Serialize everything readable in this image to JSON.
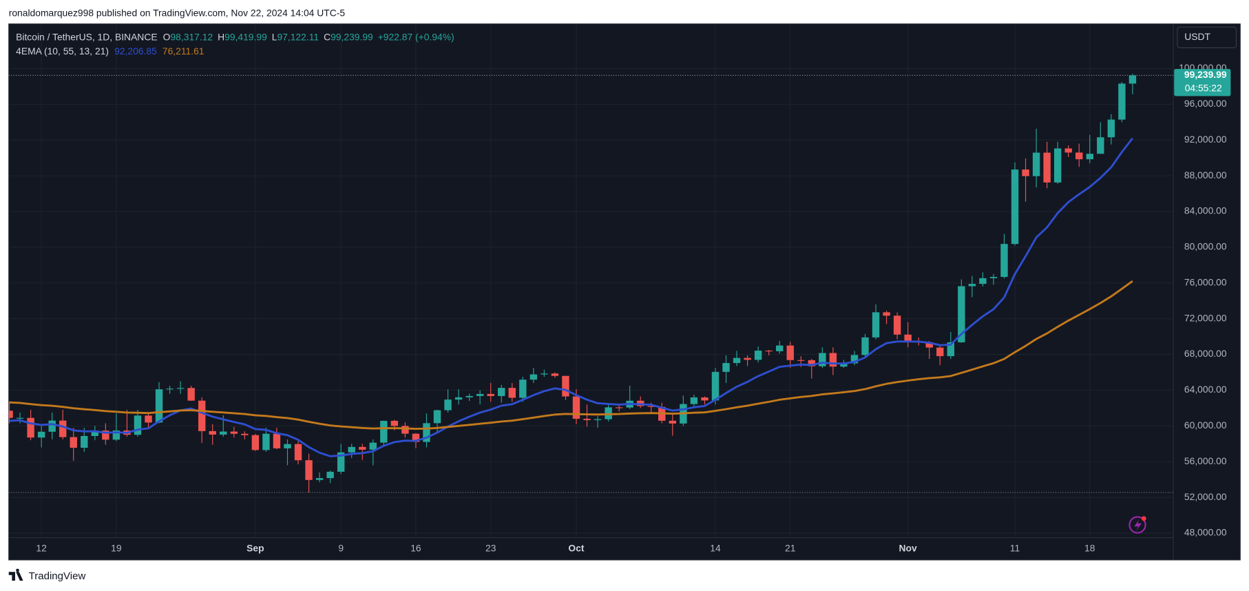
{
  "header": {
    "text": "ronaldomarquez998 published on TradingView.com, Nov 22, 2024 14:04 UTC-5"
  },
  "footer": {
    "brand": "TradingView"
  },
  "chart_data": {
    "type": "candlestick",
    "legend": {
      "symbol": "Bitcoin / TetherUS, 1D, BINANCE",
      "open_key": "O",
      "high_key": "H",
      "low_key": "L",
      "close_key": "C",
      "ohlc_labels": [
        "98,317.12",
        "99,419.99",
        "97,122.11",
        "99,239.99"
      ],
      "change": "+922.87 (+0.94%)",
      "indicator": "4EMA (10, 55, 13, 21)"
    },
    "currency": "USDT",
    "countdown": "04:55:22",
    "categories": [
      null,
      null,
      null,
      "12",
      null,
      null,
      null,
      null,
      null,
      null,
      "19",
      null,
      null,
      null,
      null,
      null,
      null,
      null,
      null,
      null,
      null,
      null,
      null,
      "Sep",
      null,
      null,
      null,
      null,
      null,
      null,
      null,
      "9",
      null,
      null,
      null,
      null,
      null,
      null,
      "16",
      null,
      null,
      null,
      null,
      null,
      null,
      "23",
      null,
      null,
      null,
      null,
      null,
      null,
      null,
      "Oct",
      null,
      null,
      null,
      null,
      null,
      null,
      null,
      null,
      null,
      null,
      null,
      null,
      "14",
      null,
      null,
      null,
      null,
      null,
      null,
      "21",
      null,
      null,
      null,
      null,
      null,
      null,
      null,
      null,
      null,
      null,
      "Nov",
      null,
      null,
      null,
      null,
      null,
      null,
      null,
      null,
      null,
      "11",
      null,
      null,
      null,
      null,
      null,
      null,
      "18",
      null,
      null,
      null,
      null
    ],
    "open": [
      61700,
      60900,
      60900,
      58700,
      59350,
      60600,
      58750,
      57560,
      58870,
      59480,
      58460,
      59490,
      59010,
      61160,
      60380,
      64100,
      64180,
      64250,
      62830,
      59420,
      59030,
      59370,
      59120,
      58970,
      57300,
      59130,
      57490,
      57970,
      56160,
      53950,
      54160,
      54870,
      57040,
      57650,
      57340,
      58130,
      60570,
      60000,
      59130,
      58210,
      60310,
      61760,
      62950,
      63200,
      63350,
      63580,
      63340,
      64260,
      63150,
      65180,
      65770,
      65870,
      65600,
      63300,
      60800,
      60650,
      60750,
      62080,
      62060,
      62820,
      62220,
      62130,
      60580,
      60270,
      62450,
      63190,
      62850,
      66050,
      67040,
      67610,
      67400,
      68430,
      68360,
      69000,
      67370,
      67360,
      66680,
      68160,
      66640,
      67010,
      67940,
      69910,
      72720,
      72340,
      70220,
      69480,
      69370,
      68770,
      67810,
      69360,
      75640,
      75900,
      76540,
      76680,
      80370,
      88700,
      87960,
      90590,
      87250,
      91060,
      90600,
      89850,
      90460,
      92310,
      94290,
      98317.12
    ],
    "high": [
      62700,
      61500,
      61800,
      60200,
      61500,
      61800,
      59800,
      59800,
      60000,
      60300,
      61400,
      61800,
      61800,
      61400,
      64900,
      64500,
      65000,
      64500,
      63200,
      60200,
      61200,
      59900,
      59400,
      59100,
      59800,
      59800,
      58500,
      58300,
      56900,
      54800,
      55000,
      58000,
      58000,
      58000,
      58500,
      60600,
      60700,
      60400,
      59200,
      61400,
      61800,
      64100,
      64100,
      63600,
      64000,
      64800,
      64600,
      64800,
      65500,
      66500,
      66300,
      66000,
      65600,
      64100,
      62400,
      61100,
      62500,
      62400,
      64500,
      63300,
      62600,
      62600,
      61300,
      63400,
      63500,
      63300,
      66500,
      67900,
      68400,
      67900,
      68900,
      68500,
      69500,
      69400,
      67800,
      67500,
      68800,
      68800,
      67400,
      68400,
      70300,
      73600,
      72900,
      72700,
      71600,
      69900,
      69500,
      69000,
      70500,
      76400,
      76800,
      77200,
      77000,
      81500,
      89500,
      89950,
      93265,
      91800,
      91800,
      91400,
      91600,
      92600,
      94000,
      94900,
      98500,
      99419.99
    ],
    "low": [
      60300,
      60300,
      58400,
      57600,
      58500,
      58500,
      56100,
      57100,
      58400,
      57900,
      58300,
      58800,
      58800,
      59800,
      60300,
      63600,
      63600,
      62800,
      58100,
      57900,
      58800,
      58700,
      58500,
      57200,
      57100,
      57400,
      55600,
      55700,
      52550,
      53700,
      53600,
      54600,
      56400,
      56200,
      55600,
      57700,
      59500,
      58700,
      57500,
      57600,
      59200,
      61500,
      62400,
      62800,
      62400,
      62700,
      62600,
      62700,
      62700,
      64800,
      65500,
      65400,
      62900,
      60200,
      59900,
      59800,
      60500,
      61600,
      61900,
      62000,
      61400,
      60300,
      58900,
      60000,
      62200,
      62400,
      62400,
      64800,
      66700,
      66700,
      67100,
      67900,
      68100,
      66500,
      66600,
      65300,
      66500,
      65700,
      66500,
      66800,
      67600,
      69700,
      71400,
      69700,
      68800,
      69000,
      67500,
      66800,
      67500,
      69300,
      74400,
      75600,
      75800,
      76500,
      80200,
      85100,
      86700,
      86600,
      87100,
      90100,
      89000,
      89400,
      90800,
      91500,
      94000,
      97122.11
    ],
    "close": [
      60900,
      60900,
      58700,
      59350,
      60600,
      58750,
      57560,
      58870,
      59480,
      58460,
      59490,
      59010,
      61160,
      60380,
      64100,
      64180,
      64250,
      62830,
      59420,
      59030,
      59370,
      59120,
      58970,
      57300,
      59130,
      57490,
      57970,
      56160,
      53950,
      54160,
      54870,
      57040,
      57650,
      57340,
      58130,
      60570,
      60000,
      59130,
      58210,
      60310,
      61760,
      62950,
      63200,
      63350,
      63580,
      63340,
      64260,
      63150,
      65180,
      65770,
      65870,
      65600,
      63300,
      60800,
      60650,
      60750,
      62080,
      62060,
      62820,
      62220,
      62130,
      60580,
      60270,
      62450,
      63190,
      62850,
      66050,
      67040,
      67610,
      67400,
      68430,
      68360,
      69000,
      67370,
      67360,
      66680,
      68160,
      66640,
      67010,
      67940,
      69910,
      72720,
      72340,
      70220,
      69480,
      69370,
      68770,
      67810,
      69360,
      75640,
      75900,
      76540,
      76680,
      80370,
      88700,
      87960,
      90590,
      87250,
      91060,
      90600,
      89850,
      90460,
      92310,
      94290,
      98317.12,
      99239.99
    ],
    "up_color": "#26a69a",
    "down_color": "#ef5350",
    "series": [
      {
        "color": "#2e4fd0",
        "last_label": "92,206.85",
        "values": [
          60573,
          60632,
          60281,
          60112,
          60201,
          59937,
          59505,
          59390,
          59406,
          59234,
          59281,
          59232,
          59583,
          59728,
          60523,
          61188,
          61745,
          61942,
          61483,
          61037,
          60734,
          60440,
          60173,
          59651,
          59556,
          59180,
          58960,
          58451,
          57632,
          57000,
          56612,
          56690,
          56865,
          56951,
          57166,
          57785,
          58188,
          58359,
          58332,
          58692,
          59250,
          59923,
          60519,
          61034,
          61497,
          61832,
          62273,
          62433,
          62933,
          63449,
          63889,
          64200,
          64036,
          63447,
          62938,
          62540,
          62456,
          62384,
          62463,
          62419,
          62366,
          62041,
          61719,
          61852,
          62095,
          62232,
          62927,
          63675,
          64391,
          64939,
          65574,
          66081,
          66612,
          66750,
          66861,
          66828,
          67070,
          66992,
          66995,
          67167,
          67666,
          68586,
          69269,
          69442,
          69449,
          69435,
          69314,
          69041,
          69099,
          70289,
          71309,
          72260,
          73064,
          74393,
          76996,
          78991,
          81100,
          82218,
          83826,
          85058,
          85929,
          86753,
          87764,
          88951,
          90656,
          92206.85
        ]
      },
      {
        "color": "#c47a1c",
        "last_label": "76,211.61",
        "values": [
          62636,
          62574,
          62436,
          62326,
          62264,
          62139,
          61976,
          61865,
          61780,
          61661,
          61583,
          61491,
          61479,
          61440,
          61535,
          61629,
          61723,
          61763,
          61679,
          61584,
          61505,
          61420,
          61333,
          61189,
          61115,
          60986,
          60878,
          60710,
          60469,
          60244,
          60052,
          59944,
          59862,
          59772,
          59713,
          59744,
          59753,
          59731,
          59677,
          59700,
          59774,
          59887,
          60005,
          60124,
          60247,
          60357,
          60496,
          60591,
          60755,
          60934,
          61110,
          61270,
          61342,
          61323,
          61299,
          61279,
          61308,
          61335,
          61388,
          61418,
          61443,
          61412,
          61371,
          61410,
          61474,
          61523,
          61685,
          61876,
          62081,
          62271,
          62491,
          62701,
          62926,
          63085,
          63238,
          63361,
          63532,
          63643,
          63763,
          63912,
          64126,
          64433,
          64715,
          64912,
          65075,
          65228,
          65354,
          65442,
          65582,
          65941,
          66297,
          66663,
          67021,
          67498,
          68255,
          68958,
          69730,
          70355,
          71094,
          71790,
          72435,
          73078,
          73765,
          74498,
          75348,
          76211.61
        ]
      }
    ],
    "ylim": [
      45000,
      105000
    ],
    "yticks": [
      {
        "value": 48000,
        "label": "48,000.00"
      },
      {
        "value": 52000,
        "label": "52,000.00"
      },
      {
        "value": 56000,
        "label": "56,000.00"
      },
      {
        "value": 60000,
        "label": "60,000.00"
      },
      {
        "value": 64000,
        "label": "64,000.00"
      },
      {
        "value": 68000,
        "label": "68,000.00"
      },
      {
        "value": 72000,
        "label": "72,000.00"
      },
      {
        "value": 76000,
        "label": "76,000.00"
      },
      {
        "value": 80000,
        "label": "80,000.00"
      },
      {
        "value": 84000,
        "label": "84,000.00"
      },
      {
        "value": 88000,
        "label": "88,000.00"
      },
      {
        "value": 92000,
        "label": "92,000.00"
      },
      {
        "value": 96000,
        "label": "96,000.00"
      },
      {
        "value": 100000,
        "label": "100,000.00"
      }
    ],
    "grid": true
  }
}
